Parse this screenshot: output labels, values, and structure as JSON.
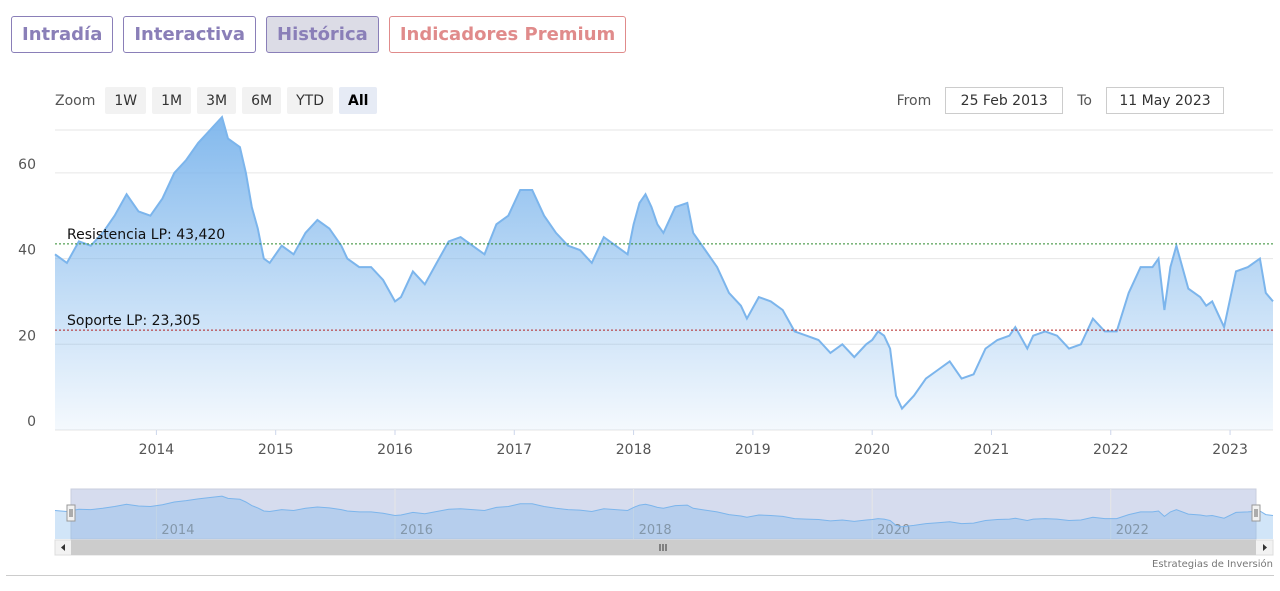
{
  "tabs": [
    {
      "label": "Intradía",
      "active": false
    },
    {
      "label": "Interactiva",
      "active": false
    },
    {
      "label": "Histórica",
      "active": true
    },
    {
      "label": "Indicadores Premium",
      "active": false
    }
  ],
  "zoom": {
    "label": "Zoom",
    "buttons": [
      "1W",
      "1M",
      "3M",
      "6M",
      "YTD",
      "All"
    ],
    "active": "All"
  },
  "range": {
    "from_label": "From",
    "from_value": "25 Feb 2013",
    "to_label": "To",
    "to_value": "11 May 2023"
  },
  "credits": "Estrategias de Inversión",
  "colors": {
    "line": "#7cb5ec",
    "resistance": "#2e8b2e",
    "support": "#b22222",
    "tab_border": "#8a7fb8",
    "premium": "#e08b8b"
  },
  "chart_data": {
    "type": "area",
    "ylim": [
      0,
      70
    ],
    "yticks": [
      0,
      20,
      40,
      60
    ],
    "x_start": 2013.15,
    "x_end": 2023.36,
    "xticks": [
      "2014",
      "2015",
      "2016",
      "2017",
      "2018",
      "2019",
      "2020",
      "2021",
      "2022",
      "2023"
    ],
    "navigator_ticks": [
      "2014",
      "2016",
      "2018",
      "2020",
      "2022"
    ],
    "grid": true,
    "annotations": [
      {
        "label": "Resistencia LP: 43,420",
        "value": 43.42,
        "color": "#2e8b2e"
      },
      {
        "label": "Soporte LP: 23,305",
        "value": 23.305,
        "color": "#b22222"
      }
    ],
    "series": [
      {
        "x": [
          2013.15,
          2013.25,
          2013.35,
          2013.45,
          2013.55,
          2013.65,
          2013.75,
          2013.85,
          2013.95,
          2014.05,
          2014.15,
          2014.25,
          2014.35,
          2014.45,
          2014.55,
          2014.6,
          2014.7,
          2014.75,
          2014.8,
          2014.85,
          2014.9,
          2014.95,
          2015.05,
          2015.15,
          2015.25,
          2015.35,
          2015.45,
          2015.55,
          2015.6,
          2015.7,
          2015.8,
          2015.9,
          2016.0,
          2016.05,
          2016.15,
          2016.25,
          2016.35,
          2016.45,
          2016.55,
          2016.65,
          2016.75,
          2016.85,
          2016.95,
          2017.05,
          2017.15,
          2017.25,
          2017.35,
          2017.45,
          2017.55,
          2017.65,
          2017.75,
          2017.85,
          2017.95,
          2018.0,
          2018.05,
          2018.1,
          2018.15,
          2018.2,
          2018.25,
          2018.35,
          2018.45,
          2018.5,
          2018.6,
          2018.7,
          2018.8,
          2018.9,
          2018.95,
          2019.05,
          2019.15,
          2019.25,
          2019.35,
          2019.45,
          2019.55,
          2019.65,
          2019.75,
          2019.85,
          2019.95,
          2020.0,
          2020.05,
          2020.1,
          2020.15,
          2020.2,
          2020.25,
          2020.35,
          2020.45,
          2020.55,
          2020.65,
          2020.75,
          2020.85,
          2020.95,
          2021.05,
          2021.15,
          2021.2,
          2021.3,
          2021.35,
          2021.45,
          2021.55,
          2021.65,
          2021.75,
          2021.85,
          2021.95,
          2022.05,
          2022.15,
          2022.25,
          2022.35,
          2022.4,
          2022.45,
          2022.5,
          2022.55,
          2022.65,
          2022.75,
          2022.8,
          2022.85,
          2022.95,
          2023.05,
          2023.15,
          2023.25,
          2023.3,
          2023.36
        ],
        "y": [
          41,
          39,
          44,
          43,
          46,
          50,
          55,
          51,
          50,
          54,
          60,
          63,
          67,
          70,
          73,
          68,
          66,
          60,
          52,
          47,
          40,
          39,
          43,
          41,
          46,
          49,
          47,
          43,
          40,
          38,
          38,
          35,
          30,
          31,
          37,
          34,
          39,
          44,
          45,
          43,
          41,
          48,
          50,
          56,
          56,
          50,
          46,
          43,
          42,
          39,
          45,
          43,
          41,
          48,
          53,
          55,
          52,
          48,
          46,
          52,
          53,
          46,
          42,
          38,
          32,
          29,
          26,
          31,
          30,
          28,
          23,
          22,
          21,
          18,
          20,
          17,
          20,
          21,
          23,
          22,
          19,
          8,
          5,
          8,
          12,
          14,
          16,
          12,
          13,
          19,
          21,
          22,
          24,
          19,
          22,
          23,
          22,
          19,
          20,
          26,
          23,
          23,
          32,
          38,
          38,
          40,
          28,
          38,
          43,
          33,
          31,
          29,
          30,
          24,
          37,
          38,
          40,
          32,
          30
        ]
      }
    ]
  }
}
